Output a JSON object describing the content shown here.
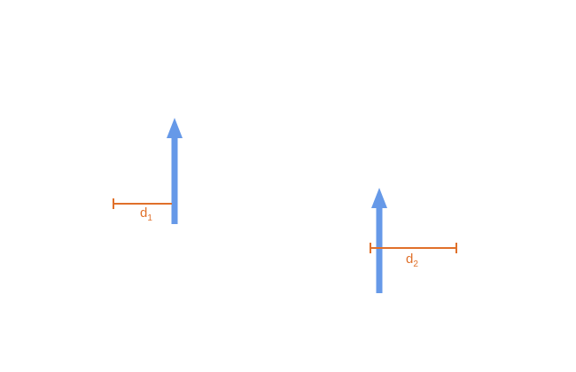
{
  "colors": {
    "arrow": "#6699e8",
    "distance": "#e0702a",
    "background": "#ffffff"
  },
  "figures": [
    {
      "arrow": {
        "name": "arrow-1",
        "direction": "up"
      },
      "distance": {
        "label_main": "d",
        "label_sub": "1",
        "side": "left"
      }
    },
    {
      "arrow": {
        "name": "arrow-2",
        "direction": "up"
      },
      "distance": {
        "label_main": "d",
        "label_sub": "2",
        "side": "right"
      }
    }
  ]
}
